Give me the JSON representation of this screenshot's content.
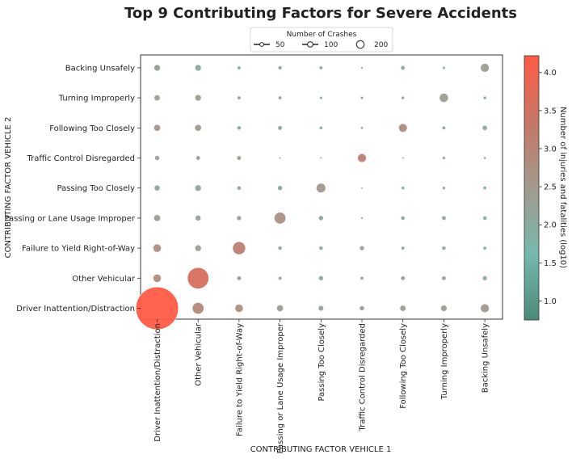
{
  "chart_data": {
    "type": "scatter",
    "title": "Top 9 Contributing Factors for Severe Accidents",
    "xlabel": "CONTRIBUTING FACTOR VEHICLE 1",
    "ylabel": "CONTRIBUTING FACTOR VEHICLE 2",
    "x_categories": [
      "Driver Inattention/Distraction",
      "Other Vehicular",
      "Failure to Yield Right-of-Way",
      "Passing or Lane Usage Improper",
      "Passing Too Closely",
      "Traffic Control Disregarded",
      "Following Too Closely",
      "Turning Improperly",
      "Backing Unsafely"
    ],
    "y_categories": [
      "Driver Inattention/Distraction",
      "Other Vehicular",
      "Failure to Yield Right-of-Way",
      "Passing or Lane Usage Improper",
      "Passing Too Closely",
      "Traffic Control Disregarded",
      "Following Too Closely",
      "Turning Improperly",
      "Backing Unsafely"
    ],
    "size_legend": {
      "title": "Number of Crashes",
      "entries": [
        {
          "label": "50",
          "value": 50
        },
        {
          "label": "100",
          "value": 100
        },
        {
          "label": "200",
          "value": 200
        }
      ]
    },
    "colorbar": {
      "label": "Number of injuries and fatalities (log10)",
      "min": 0.75,
      "max": 4.22,
      "ticks": [
        "1.0",
        "1.5",
        "2.0",
        "2.5",
        "3.0",
        "3.5",
        "4.0"
      ],
      "colors": [
        "#4a8a7a",
        "#76b8ad",
        "#a29a8e",
        "#c57666",
        "#ff5b45"
      ]
    },
    "grid": false,
    "legend_position": "top-center",
    "points": [
      {
        "x": "Driver Inattention/Distraction",
        "y": "Driver Inattention/Distraction",
        "crashes": 1200,
        "value": 4.2
      },
      {
        "x": "Other Vehicular",
        "y": "Driver Inattention/Distraction",
        "crashes": 90,
        "value": 2.9
      },
      {
        "x": "Failure to Yield Right-of-Way",
        "y": "Driver Inattention/Distraction",
        "crashes": 45,
        "value": 2.8
      },
      {
        "x": "Passing or Lane Usage Improper",
        "y": "Driver Inattention/Distraction",
        "crashes": 30,
        "value": 2.4
      },
      {
        "x": "Passing Too Closely",
        "y": "Driver Inattention/Distraction",
        "crashes": 18,
        "value": 2.2
      },
      {
        "x": "Traffic Control Disregarded",
        "y": "Driver Inattention/Distraction",
        "crashes": 15,
        "value": 2.3
      },
      {
        "x": "Following Too Closely",
        "y": "Driver Inattention/Distraction",
        "crashes": 22,
        "value": 2.4
      },
      {
        "x": "Turning Improperly",
        "y": "Driver Inattention/Distraction",
        "crashes": 25,
        "value": 2.3
      },
      {
        "x": "Backing Unsafely",
        "y": "Driver Inattention/Distraction",
        "crashes": 50,
        "value": 2.5
      },
      {
        "x": "Driver Inattention/Distraction",
        "y": "Other Vehicular",
        "crashes": 45,
        "value": 2.8
      },
      {
        "x": "Other Vehicular",
        "y": "Other Vehicular",
        "crashes": 300,
        "value": 3.6
      },
      {
        "x": "Failure to Yield Right-of-Way",
        "y": "Other Vehicular",
        "crashes": 12,
        "value": 2.3
      },
      {
        "x": "Passing or Lane Usage Improper",
        "y": "Other Vehicular",
        "crashes": 8,
        "value": 2.1
      },
      {
        "x": "Passing Too Closely",
        "y": "Other Vehicular",
        "crashes": 14,
        "value": 2.2
      },
      {
        "x": "Traffic Control Disregarded",
        "y": "Other Vehicular",
        "crashes": 8,
        "value": 2.1
      },
      {
        "x": "Following Too Closely",
        "y": "Other Vehicular",
        "crashes": 12,
        "value": 2.3
      },
      {
        "x": "Turning Improperly",
        "y": "Other Vehicular",
        "crashes": 12,
        "value": 2.2
      },
      {
        "x": "Backing Unsafely",
        "y": "Other Vehicular",
        "crashes": 14,
        "value": 2.0
      },
      {
        "x": "Driver Inattention/Distraction",
        "y": "Failure to Yield Right-of-Way",
        "crashes": 45,
        "value": 2.8
      },
      {
        "x": "Other Vehicular",
        "y": "Failure to Yield Right-of-Way",
        "crashes": 28,
        "value": 2.4
      },
      {
        "x": "Failure to Yield Right-of-Way",
        "y": "Failure to Yield Right-of-Way",
        "crashes": 110,
        "value": 3.1
      },
      {
        "x": "Passing or Lane Usage Improper",
        "y": "Failure to Yield Right-of-Way",
        "crashes": 10,
        "value": 2.1
      },
      {
        "x": "Passing Too Closely",
        "y": "Failure to Yield Right-of-Way",
        "crashes": 10,
        "value": 2.0
      },
      {
        "x": "Traffic Control Disregarded",
        "y": "Failure to Yield Right-of-Way",
        "crashes": 14,
        "value": 2.3
      },
      {
        "x": "Following Too Closely",
        "y": "Failure to Yield Right-of-Way",
        "crashes": 8,
        "value": 2.1
      },
      {
        "x": "Turning Improperly",
        "y": "Failure to Yield Right-of-Way",
        "crashes": 10,
        "value": 2.1
      },
      {
        "x": "Backing Unsafely",
        "y": "Failure to Yield Right-of-Way",
        "crashes": 8,
        "value": 2.0
      },
      {
        "x": "Driver Inattention/Distraction",
        "y": "Passing or Lane Usage Improper",
        "crashes": 30,
        "value": 2.4
      },
      {
        "x": "Other Vehicular",
        "y": "Passing or Lane Usage Improper",
        "crashes": 20,
        "value": 2.2
      },
      {
        "x": "Failure to Yield Right-of-Way",
        "y": "Passing or Lane Usage Improper",
        "crashes": 14,
        "value": 2.3
      },
      {
        "x": "Passing or Lane Usage Improper",
        "y": "Passing or Lane Usage Improper",
        "crashes": 90,
        "value": 2.7
      },
      {
        "x": "Passing Too Closely",
        "y": "Passing or Lane Usage Improper",
        "crashes": 15,
        "value": 2.1
      },
      {
        "x": "Traffic Control Disregarded",
        "y": "Passing or Lane Usage Improper",
        "crashes": 3,
        "value": 2.0
      },
      {
        "x": "Following Too Closely",
        "y": "Passing or Lane Usage Improper",
        "crashes": 10,
        "value": 2.1
      },
      {
        "x": "Turning Improperly",
        "y": "Passing or Lane Usage Improper",
        "crashes": 12,
        "value": 2.2
      },
      {
        "x": "Backing Unsafely",
        "y": "Passing or Lane Usage Improper",
        "crashes": 10,
        "value": 2.0
      },
      {
        "x": "Driver Inattention/Distraction",
        "y": "Passing Too Closely",
        "crashes": 20,
        "value": 2.2
      },
      {
        "x": "Other Vehicular",
        "y": "Passing Too Closely",
        "crashes": 25,
        "value": 2.2
      },
      {
        "x": "Failure to Yield Right-of-Way",
        "y": "Passing Too Closely",
        "crashes": 10,
        "value": 2.1
      },
      {
        "x": "Passing or Lane Usage Improper",
        "y": "Passing Too Closely",
        "crashes": 15,
        "value": 2.0
      },
      {
        "x": "Passing Too Closely",
        "y": "Passing Too Closely",
        "crashes": 60,
        "value": 2.5
      },
      {
        "x": "Traffic Control Disregarded",
        "y": "Passing Too Closely",
        "crashes": 2,
        "value": 2.0
      },
      {
        "x": "Following Too Closely",
        "y": "Passing Too Closely",
        "crashes": 7,
        "value": 2.0
      },
      {
        "x": "Turning Improperly",
        "y": "Passing Too Closely",
        "crashes": 6,
        "value": 2.0
      },
      {
        "x": "Backing Unsafely",
        "y": "Passing Too Closely",
        "crashes": 8,
        "value": 1.9
      },
      {
        "x": "Driver Inattention/Distraction",
        "y": "Traffic Control Disregarded",
        "crashes": 15,
        "value": 2.3
      },
      {
        "x": "Other Vehicular",
        "y": "Traffic Control Disregarded",
        "crashes": 12,
        "value": 2.3
      },
      {
        "x": "Failure to Yield Right-of-Way",
        "y": "Traffic Control Disregarded",
        "crashes": 12,
        "value": 2.4
      },
      {
        "x": "Passing or Lane Usage Improper",
        "y": "Traffic Control Disregarded",
        "crashes": 2,
        "value": 2.0
      },
      {
        "x": "Passing Too Closely",
        "y": "Traffic Control Disregarded",
        "crashes": 2,
        "value": 2.1
      },
      {
        "x": "Traffic Control Disregarded",
        "y": "Traffic Control Disregarded",
        "crashes": 50,
        "value": 3.1
      },
      {
        "x": "Following Too Closely",
        "y": "Traffic Control Disregarded",
        "crashes": 2,
        "value": 2.0
      },
      {
        "x": "Turning Improperly",
        "y": "Traffic Control Disregarded",
        "crashes": 6,
        "value": 2.1
      },
      {
        "x": "Backing Unsafely",
        "y": "Traffic Control Disregarded",
        "crashes": 4,
        "value": 2.0
      },
      {
        "x": "Driver Inattention/Distraction",
        "y": "Following Too Closely",
        "crashes": 30,
        "value": 2.6
      },
      {
        "x": "Other Vehicular",
        "y": "Following Too Closely",
        "crashes": 30,
        "value": 2.5
      },
      {
        "x": "Failure to Yield Right-of-Way",
        "y": "Following Too Closely",
        "crashes": 10,
        "value": 2.1
      },
      {
        "x": "Passing or Lane Usage Improper",
        "y": "Following Too Closely",
        "crashes": 12,
        "value": 2.1
      },
      {
        "x": "Passing Too Closely",
        "y": "Following Too Closely",
        "crashes": 7,
        "value": 2.0
      },
      {
        "x": "Traffic Control Disregarded",
        "y": "Following Too Closely",
        "crashes": 4,
        "value": 2.0
      },
      {
        "x": "Following Too Closely",
        "y": "Following Too Closely",
        "crashes": 50,
        "value": 2.8
      },
      {
        "x": "Turning Improperly",
        "y": "Following Too Closely",
        "crashes": 8,
        "value": 2.1
      },
      {
        "x": "Backing Unsafely",
        "y": "Following Too Closely",
        "crashes": 16,
        "value": 2.0
      },
      {
        "x": "Driver Inattention/Distraction",
        "y": "Turning Improperly",
        "crashes": 22,
        "value": 2.3
      },
      {
        "x": "Other Vehicular",
        "y": "Turning Improperly",
        "crashes": 25,
        "value": 2.4
      },
      {
        "x": "Failure to Yield Right-of-Way",
        "y": "Turning Improperly",
        "crashes": 8,
        "value": 2.1
      },
      {
        "x": "Passing or Lane Usage Improper",
        "y": "Turning Improperly",
        "crashes": 8,
        "value": 2.1
      },
      {
        "x": "Passing Too Closely",
        "y": "Turning Improperly",
        "crashes": 5,
        "value": 2.0
      },
      {
        "x": "Traffic Control Disregarded",
        "y": "Turning Improperly",
        "crashes": 5,
        "value": 2.1
      },
      {
        "x": "Following Too Closely",
        "y": "Turning Improperly",
        "crashes": 6,
        "value": 2.1
      },
      {
        "x": "Turning Improperly",
        "y": "Turning Improperly",
        "crashes": 55,
        "value": 2.4
      },
      {
        "x": "Backing Unsafely",
        "y": "Turning Improperly",
        "crashes": 6,
        "value": 2.0
      },
      {
        "x": "Driver Inattention/Distraction",
        "y": "Backing Unsafely",
        "crashes": 28,
        "value": 2.3
      },
      {
        "x": "Other Vehicular",
        "y": "Backing Unsafely",
        "crashes": 25,
        "value": 2.1
      },
      {
        "x": "Failure to Yield Right-of-Way",
        "y": "Backing Unsafely",
        "crashes": 8,
        "value": 2.0
      },
      {
        "x": "Passing or Lane Usage Improper",
        "y": "Backing Unsafely",
        "crashes": 9,
        "value": 2.0
      },
      {
        "x": "Passing Too Closely",
        "y": "Backing Unsafely",
        "crashes": 8,
        "value": 1.9
      },
      {
        "x": "Traffic Control Disregarded",
        "y": "Backing Unsafely",
        "crashes": 3,
        "value": 2.0
      },
      {
        "x": "Following Too Closely",
        "y": "Backing Unsafely",
        "crashes": 12,
        "value": 2.0
      },
      {
        "x": "Turning Improperly",
        "y": "Backing Unsafely",
        "crashes": 5,
        "value": 1.9
      },
      {
        "x": "Backing Unsafely",
        "y": "Backing Unsafely",
        "crashes": 50,
        "value": 2.4
      }
    ]
  }
}
